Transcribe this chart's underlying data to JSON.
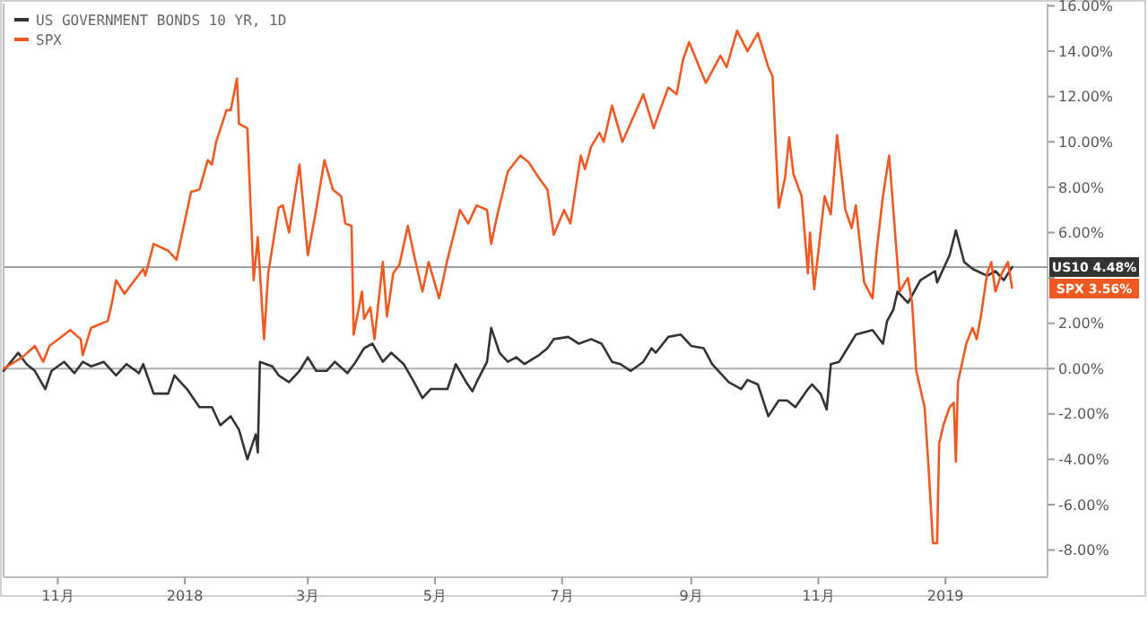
{
  "chart_data": {
    "type": "line",
    "legend": "top left",
    "grid": false,
    "xlim": [
      "2017-10-06",
      "2019-02-19"
    ],
    "xticks": [
      {
        "value": "2017-11-01",
        "label": "11月"
      },
      {
        "value": "2018-01-01",
        "label": "2018"
      },
      {
        "value": "2018-03-01",
        "label": "3月"
      },
      {
        "value": "2018-05-01",
        "label": "5月"
      },
      {
        "value": "2018-07-01",
        "label": "7月"
      },
      {
        "value": "2018-09-01",
        "label": "9月"
      },
      {
        "value": "2018-11-01",
        "label": "11月"
      },
      {
        "value": "2019-01-01",
        "label": "2019"
      }
    ],
    "ylim": [
      -9.2,
      16.1
    ],
    "yticks": [
      {
        "value": -8,
        "label": "-8.00%"
      },
      {
        "value": -6,
        "label": "-6.00%"
      },
      {
        "value": -4,
        "label": "-4.00%"
      },
      {
        "value": -2,
        "label": "-2.00%"
      },
      {
        "value": 0,
        "label": "0.00%"
      },
      {
        "value": 2,
        "label": "2.00%"
      },
      {
        "value": 4,
        "label": null
      },
      {
        "value": 6,
        "label": "6.00%"
      },
      {
        "value": 8,
        "label": "8.00%"
      },
      {
        "value": 10,
        "label": "10.00%"
      },
      {
        "value": 12,
        "label": "12.00%"
      },
      {
        "value": 14,
        "label": "14.00%"
      },
      {
        "value": 16,
        "label": "16.00%"
      }
    ],
    "ref_lines": [
      {
        "axis": "y",
        "value": 0,
        "color": "#b0b0b0"
      },
      {
        "axis": "y",
        "value": 4.48,
        "color": "#a0a0a0"
      }
    ],
    "annotations": [
      "US10 4.48%",
      "SPX 3.56%"
    ],
    "series": [
      {
        "name": "US GOVERNMENT BONDS 10 YR, 1D",
        "color": "#333333",
        "x": [
          "2017-10-06",
          "2017-10-13",
          "2017-10-17",
          "2017-10-21",
          "2017-10-26",
          "2017-10-29",
          "2017-11-04",
          "2017-11-09",
          "2017-11-13",
          "2017-11-17",
          "2017-11-23",
          "2017-11-29",
          "2017-12-04",
          "2017-12-10",
          "2017-12-12",
          "2017-12-17",
          "2017-12-24",
          "2017-12-27",
          "2018-01-02",
          "2018-01-08",
          "2018-01-14",
          "2018-01-18",
          "2018-01-23",
          "2018-01-27",
          "2018-01-31",
          "2018-02-04",
          "2018-02-05",
          "2018-02-06",
          "2018-02-12",
          "2018-02-15",
          "2018-02-20",
          "2018-02-25",
          "2018-03-01",
          "2018-03-05",
          "2018-03-10",
          "2018-03-14",
          "2018-03-20",
          "2018-03-24",
          "2018-03-28",
          "2018-04-01",
          "2018-04-06",
          "2018-04-10",
          "2018-04-16",
          "2018-04-21",
          "2018-04-25",
          "2018-04-29",
          "2018-05-07",
          "2018-05-11",
          "2018-05-16",
          "2018-05-19",
          "2018-05-21",
          "2018-05-26",
          "2018-05-28",
          "2018-06-01",
          "2018-06-05",
          "2018-06-09",
          "2018-06-13",
          "2018-06-20",
          "2018-06-24",
          "2018-06-27",
          "2018-07-04",
          "2018-07-09",
          "2018-07-15",
          "2018-07-20",
          "2018-07-25",
          "2018-07-29",
          "2018-08-03",
          "2018-08-09",
          "2018-08-13",
          "2018-08-15",
          "2018-08-21",
          "2018-08-27",
          "2018-09-01",
          "2018-09-07",
          "2018-09-11",
          "2018-09-19",
          "2018-09-25",
          "2018-09-28",
          "2018-10-03",
          "2018-10-08",
          "2018-10-13",
          "2018-10-17",
          "2018-10-21",
          "2018-10-27",
          "2018-10-29",
          "2018-11-02",
          "2018-11-05",
          "2018-11-07",
          "2018-11-11",
          "2018-11-15",
          "2018-11-19",
          "2018-11-27",
          "2018-12-02",
          "2018-12-04",
          "2018-12-07",
          "2018-12-09",
          "2018-12-14",
          "2018-12-20",
          "2018-12-27",
          "2018-12-28",
          "2019-01-03",
          "2019-01-06",
          "2019-01-10",
          "2019-01-14",
          "2019-01-21",
          "2019-01-25",
          "2019-01-29",
          "2019-02-02"
        ],
        "values": [
          -0.1,
          0.7,
          0.2,
          -0.1,
          -0.9,
          -0.1,
          0.3,
          -0.2,
          0.3,
          0.1,
          0.3,
          -0.3,
          0.2,
          -0.2,
          0.2,
          -1.1,
          -1.1,
          -0.3,
          -0.9,
          -1.7,
          -1.7,
          -2.5,
          -2.1,
          -2.7,
          -4.0,
          -2.9,
          -3.7,
          0.3,
          0.1,
          -0.3,
          -0.6,
          -0.1,
          0.5,
          -0.1,
          -0.1,
          0.3,
          -0.2,
          0.3,
          0.9,
          1.1,
          0.3,
          0.7,
          0.2,
          -0.6,
          -1.3,
          -0.9,
          -0.9,
          0.2,
          -0.6,
          -1.0,
          -0.6,
          0.3,
          1.8,
          0.7,
          0.3,
          0.5,
          0.2,
          0.6,
          0.9,
          1.3,
          1.4,
          1.1,
          1.3,
          1.1,
          0.3,
          0.2,
          -0.1,
          0.3,
          0.9,
          0.7,
          1.4,
          1.5,
          1.0,
          0.9,
          0.2,
          -0.6,
          -0.9,
          -0.5,
          -0.7,
          -2.1,
          -1.4,
          -1.4,
          -1.7,
          -0.9,
          -0.7,
          -1.1,
          -1.8,
          0.2,
          0.3,
          0.9,
          1.5,
          1.7,
          1.1,
          2.1,
          2.6,
          3.4,
          2.9,
          3.9,
          4.3,
          3.8,
          5.0,
          6.1,
          4.7,
          4.4,
          4.1,
          4.3,
          3.9,
          4.48
        ]
      },
      {
        "name": "SPX",
        "color": "#f05a22",
        "x": [
          "2017-10-06",
          "2017-10-15",
          "2017-10-21",
          "2017-10-25",
          "2017-10-28",
          "2017-11-07",
          "2017-11-12",
          "2017-11-13",
          "2017-11-17",
          "2017-11-25",
          "2017-11-27",
          "2017-11-29",
          "2017-12-03",
          "2017-12-12",
          "2017-12-13",
          "2017-12-17",
          "2017-12-24",
          "2017-12-28",
          "2018-01-04",
          "2018-01-08",
          "2018-01-12",
          "2018-01-14",
          "2018-01-16",
          "2018-01-21",
          "2018-01-23",
          "2018-01-26",
          "2018-01-27",
          "2018-01-31",
          "2018-02-03",
          "2018-02-05",
          "2018-02-08",
          "2018-02-10",
          "2018-02-15",
          "2018-02-17",
          "2018-02-20",
          "2018-02-25",
          "2018-03-01",
          "2018-03-05",
          "2018-03-09",
          "2018-03-13",
          "2018-03-17",
          "2018-03-19",
          "2018-03-22",
          "2018-03-23",
          "2018-03-27",
          "2018-03-28",
          "2018-03-31",
          "2018-04-02",
          "2018-04-06",
          "2018-04-08",
          "2018-04-11",
          "2018-04-14",
          "2018-04-18",
          "2018-04-21",
          "2018-04-25",
          "2018-04-28",
          "2018-05-03",
          "2018-05-07",
          "2018-05-13",
          "2018-05-17",
          "2018-05-21",
          "2018-05-26",
          "2018-05-28",
          "2018-05-31",
          "2018-06-05",
          "2018-06-11",
          "2018-06-15",
          "2018-06-20",
          "2018-06-24",
          "2018-06-27",
          "2018-07-02",
          "2018-07-05",
          "2018-07-10",
          "2018-07-12",
          "2018-07-15",
          "2018-07-19",
          "2018-07-21",
          "2018-07-25",
          "2018-07-30",
          "2018-08-09",
          "2018-08-14",
          "2018-08-17",
          "2018-08-21",
          "2018-08-25",
          "2018-08-28",
          "2018-08-31",
          "2018-09-08",
          "2018-09-15",
          "2018-09-18",
          "2018-09-23",
          "2018-09-28",
          "2018-10-03",
          "2018-10-08",
          "2018-10-10",
          "2018-10-13",
          "2018-10-16",
          "2018-10-18",
          "2018-10-20",
          "2018-10-24",
          "2018-10-27",
          "2018-10-28",
          "2018-10-30",
          "2018-11-04",
          "2018-11-07",
          "2018-11-10",
          "2018-11-14",
          "2018-11-17",
          "2018-11-19",
          "2018-11-23",
          "2018-11-27",
          "2018-11-29",
          "2018-12-02",
          "2018-12-05",
          "2018-12-08",
          "2018-12-10",
          "2018-12-14",
          "2018-12-16",
          "2018-12-18",
          "2018-12-22",
          "2018-12-24",
          "2018-12-26",
          "2018-12-28",
          "2018-12-29",
          "2018-12-31",
          "2019-01-03",
          "2019-01-05",
          "2019-01-06",
          "2019-01-07",
          "2019-01-11",
          "2019-01-14",
          "2019-01-16",
          "2019-01-18",
          "2019-01-21",
          "2019-01-23",
          "2019-01-25",
          "2019-01-28",
          "2019-01-31",
          "2019-02-02"
        ],
        "values": [
          0,
          0.5,
          1.0,
          0.3,
          1.0,
          1.7,
          1.3,
          0.6,
          1.8,
          2.1,
          2.9,
          3.9,
          3.3,
          4.4,
          4.1,
          5.5,
          5.2,
          4.8,
          7.8,
          7.9,
          9.2,
          9.0,
          10.0,
          11.4,
          11.4,
          12.8,
          10.8,
          10.6,
          3.9,
          5.8,
          1.3,
          4.2,
          7.1,
          7.2,
          6.0,
          9.0,
          5.0,
          7.0,
          9.2,
          7.9,
          7.6,
          6.4,
          6.3,
          1.5,
          3.4,
          2.2,
          2.7,
          1.3,
          4.7,
          2.3,
          4.2,
          4.6,
          6.3,
          5.0,
          3.4,
          4.7,
          3.1,
          4.8,
          7.0,
          6.4,
          7.2,
          7.0,
          5.5,
          6.8,
          8.7,
          9.4,
          9.1,
          8.4,
          7.9,
          5.9,
          7.0,
          6.4,
          9.4,
          8.8,
          9.8,
          10.4,
          10.0,
          11.6,
          10.0,
          12.1,
          10.6,
          11.4,
          12.4,
          12.1,
          13.6,
          14.4,
          12.6,
          13.8,
          13.3,
          14.9,
          14.0,
          14.8,
          13.3,
          12.9,
          7.1,
          8.4,
          10.2,
          8.6,
          7.6,
          4.2,
          6.0,
          3.5,
          7.6,
          6.8,
          10.3,
          7.0,
          6.2,
          7.2,
          3.8,
          3.1,
          5.2,
          7.6,
          9.4,
          5.8,
          3.4,
          4.0,
          2.9,
          -0.1,
          -1.7,
          -4.5,
          -7.7,
          -7.7,
          -3.3,
          -2.5,
          -1.7,
          -1.5,
          -4.1,
          -0.6,
          1.1,
          1.8,
          1.3,
          2.3,
          4.2,
          4.7,
          3.4,
          4.2,
          4.7,
          3.56
        ]
      }
    ]
  }
}
